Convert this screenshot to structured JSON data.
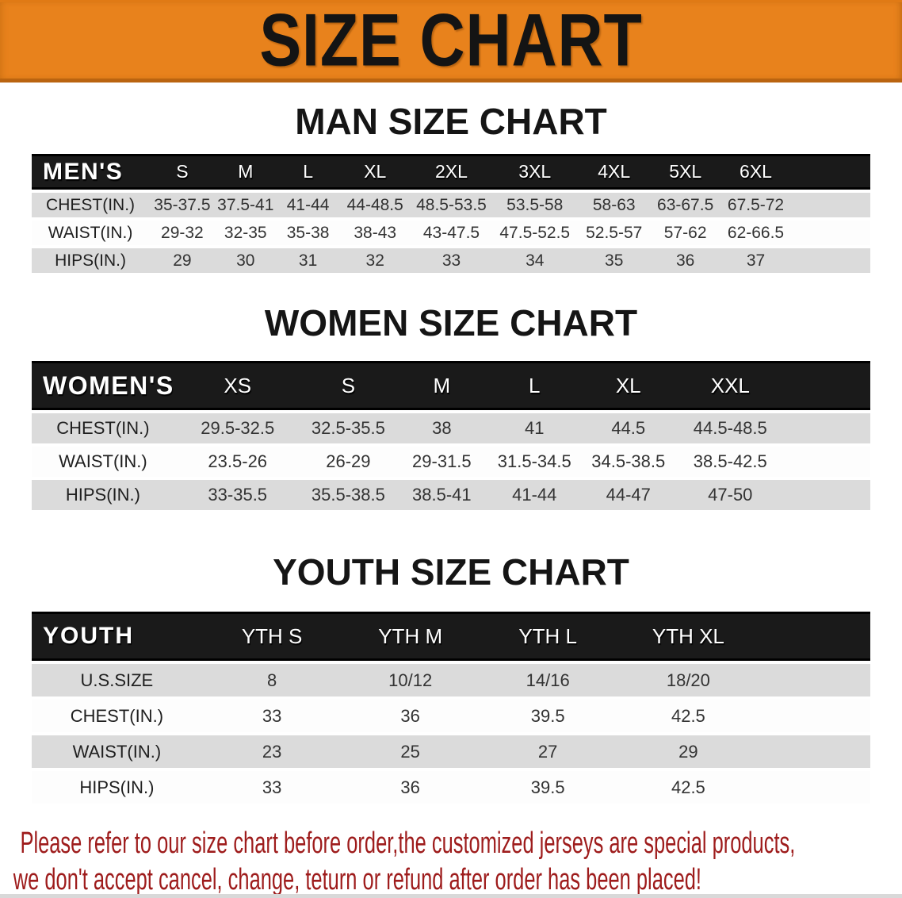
{
  "banner": {
    "title": "SIZE CHART"
  },
  "colors": {
    "banner_orange": "#E8821C",
    "banner_orange_top": "#E07A15",
    "banner_orange_edge": "#BA6410",
    "header_bar_black": "#1a1a1a",
    "row_gray": "#dbdbdb",
    "row_white": "#fdfdfd",
    "footer_red": "#9E1C1C"
  },
  "sections": [
    {
      "heading": "MAN SIZE CHART",
      "table": {
        "name": "mens",
        "label": "MEN'S",
        "columns": [
          "S",
          "M",
          "L",
          "XL",
          "2XL",
          "3XL",
          "4XL",
          "5XL",
          "6XL"
        ],
        "rows": [
          {
            "label": "CHEST(IN.)",
            "values": [
              "35-37.5",
              "37.5-41",
              "41-44",
              "44-48.5",
              "48.5-53.5",
              "53.5-58",
              "58-63",
              "63-67.5",
              "67.5-72"
            ]
          },
          {
            "label": "WAIST(IN.)",
            "values": [
              "29-32",
              "32-35",
              "35-38",
              "38-43",
              "43-47.5",
              "47.5-52.5",
              "52.5-57",
              "57-62",
              "62-66.5"
            ]
          },
          {
            "label": "HIPS(IN.)",
            "values": [
              "29",
              "30",
              "31",
              "32",
              "33",
              "34",
              "35",
              "36",
              "37"
            ]
          }
        ]
      }
    },
    {
      "heading": "WOMEN SIZE CHART",
      "table": {
        "name": "womens",
        "label": "WOMEN'S",
        "columns": [
          "XS",
          "S",
          "M",
          "L",
          "XL",
          "XXL"
        ],
        "rows": [
          {
            "label": "CHEST(IN.)",
            "values": [
              "29.5-32.5",
              "32.5-35.5",
              "38",
              "41",
              "44.5",
              "44.5-48.5"
            ]
          },
          {
            "label": "WAIST(IN.)",
            "values": [
              "23.5-26",
              "26-29",
              "29-31.5",
              "31.5-34.5",
              "34.5-38.5",
              "38.5-42.5"
            ]
          },
          {
            "label": "HIPS(IN.)",
            "values": [
              "33-35.5",
              "35.5-38.5",
              "38.5-41",
              "41-44",
              "44-47",
              "47-50"
            ]
          }
        ]
      }
    },
    {
      "heading": "YOUTH SIZE CHART",
      "table": {
        "name": "youth",
        "label": "YOUTH",
        "columns": [
          "YTH S",
          "YTH M",
          "YTH L",
          "YTH XL"
        ],
        "rows": [
          {
            "label": "U.S.SIZE",
            "values": [
              "8",
              "10/12",
              "14/16",
              "18/20"
            ]
          },
          {
            "label": "CHEST(IN.)",
            "values": [
              "33",
              "36",
              "39.5",
              "42.5"
            ]
          },
          {
            "label": "WAIST(IN.)",
            "values": [
              "23",
              "25",
              "27",
              "29"
            ]
          },
          {
            "label": "HIPS(IN.)",
            "values": [
              "33",
              "36",
              "39.5",
              "42.5"
            ]
          }
        ]
      }
    }
  ],
  "footer": {
    "line1": "Please refer to our size chart before order,the customized jerseys are special products,",
    "line2": "we don't accept cancel, change, teturn or refund after order has been placed!"
  }
}
